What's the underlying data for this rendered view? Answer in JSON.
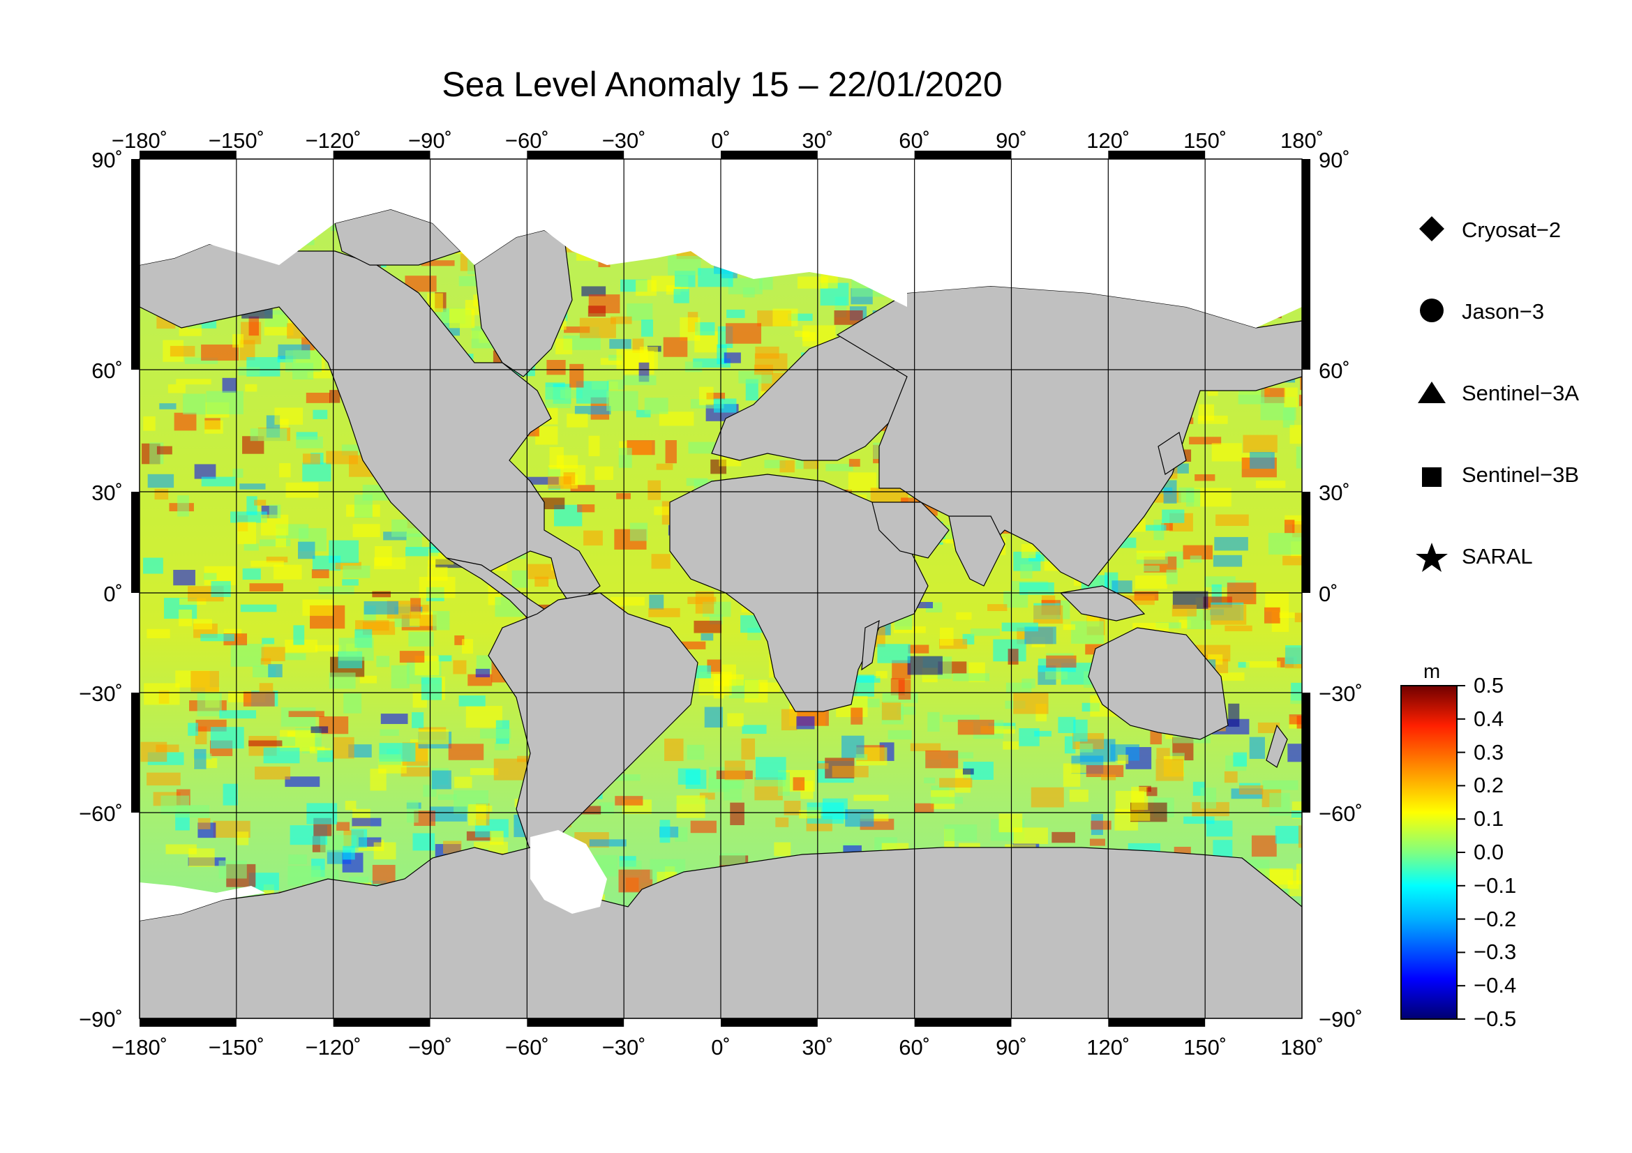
{
  "title": "Sea Level Anomaly 15 – 22/01/2020",
  "map": {
    "lon_ticks": [
      "−180˚",
      "−150˚",
      "−120˚",
      "−90˚",
      "−60˚",
      "−30˚",
      "0˚",
      "30˚",
      "60˚",
      "90˚",
      "120˚",
      "150˚",
      "180˚"
    ],
    "lat_ticks": [
      "90˚",
      "60˚",
      "30˚",
      "0˚",
      "−30˚",
      "−60˚",
      "−90˚"
    ],
    "lon_range": [
      -180,
      180
    ],
    "lat_range": [
      -90,
      90
    ],
    "grid_step_deg": 30,
    "land_color": "#c0c0c0",
    "ice_color": "#ffffff"
  },
  "legend": {
    "placement": "right",
    "items": [
      {
        "label": "Cryosat−2",
        "marker": "diamond"
      },
      {
        "label": "Jason−3",
        "marker": "circle"
      },
      {
        "label": "Sentinel−3A",
        "marker": "triangle"
      },
      {
        "label": "Sentinel−3B",
        "marker": "square"
      },
      {
        "label": "SARAL",
        "marker": "star"
      }
    ]
  },
  "colorbar": {
    "unit": "m",
    "min": -0.5,
    "max": 0.5,
    "tick_labels": [
      "0.5",
      "0.4",
      "0.3",
      "0.2",
      "0.1",
      "0.0",
      "−0.1",
      "−0.2",
      "−0.3",
      "−0.4",
      "−0.5"
    ],
    "colors": [
      "#00008f",
      "#0000ff",
      "#00a0ff",
      "#00ffff",
      "#80ff80",
      "#ffff00",
      "#ffa000",
      "#ff3000",
      "#c00000",
      "#800000"
    ]
  }
}
